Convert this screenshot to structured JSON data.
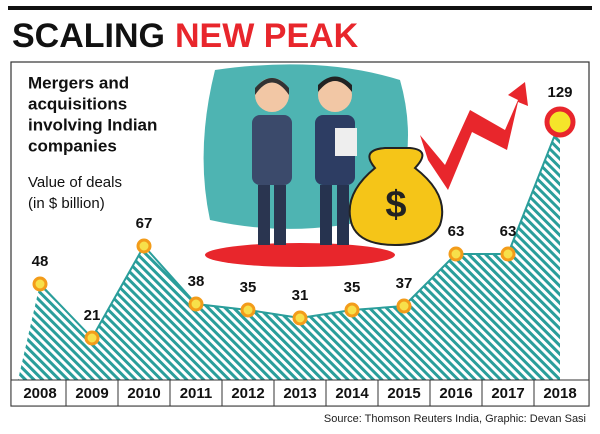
{
  "chart_data": {
    "type": "area",
    "title": {
      "main": "SCALING",
      "highlight": "NEW PEAK"
    },
    "subtitle": [
      "Mergers and",
      "acquisitions",
      "involving Indian",
      "companies"
    ],
    "y_label": [
      "Value of deals",
      "(in $ billion)"
    ],
    "categories": [
      "2008",
      "2009",
      "2010",
      "2011",
      "2012",
      "2013",
      "2014",
      "2015",
      "2016",
      "2017",
      "2018"
    ],
    "values": [
      48,
      21,
      67,
      38,
      35,
      31,
      35,
      37,
      63,
      63,
      129
    ],
    "color": "#2a9e9b",
    "marker_color": "#f39c1a",
    "highlight_color": "#e8262c",
    "illustration_label": "$",
    "source": "Source: Thomson Reuters India, Graphic: Devan Sasi"
  }
}
